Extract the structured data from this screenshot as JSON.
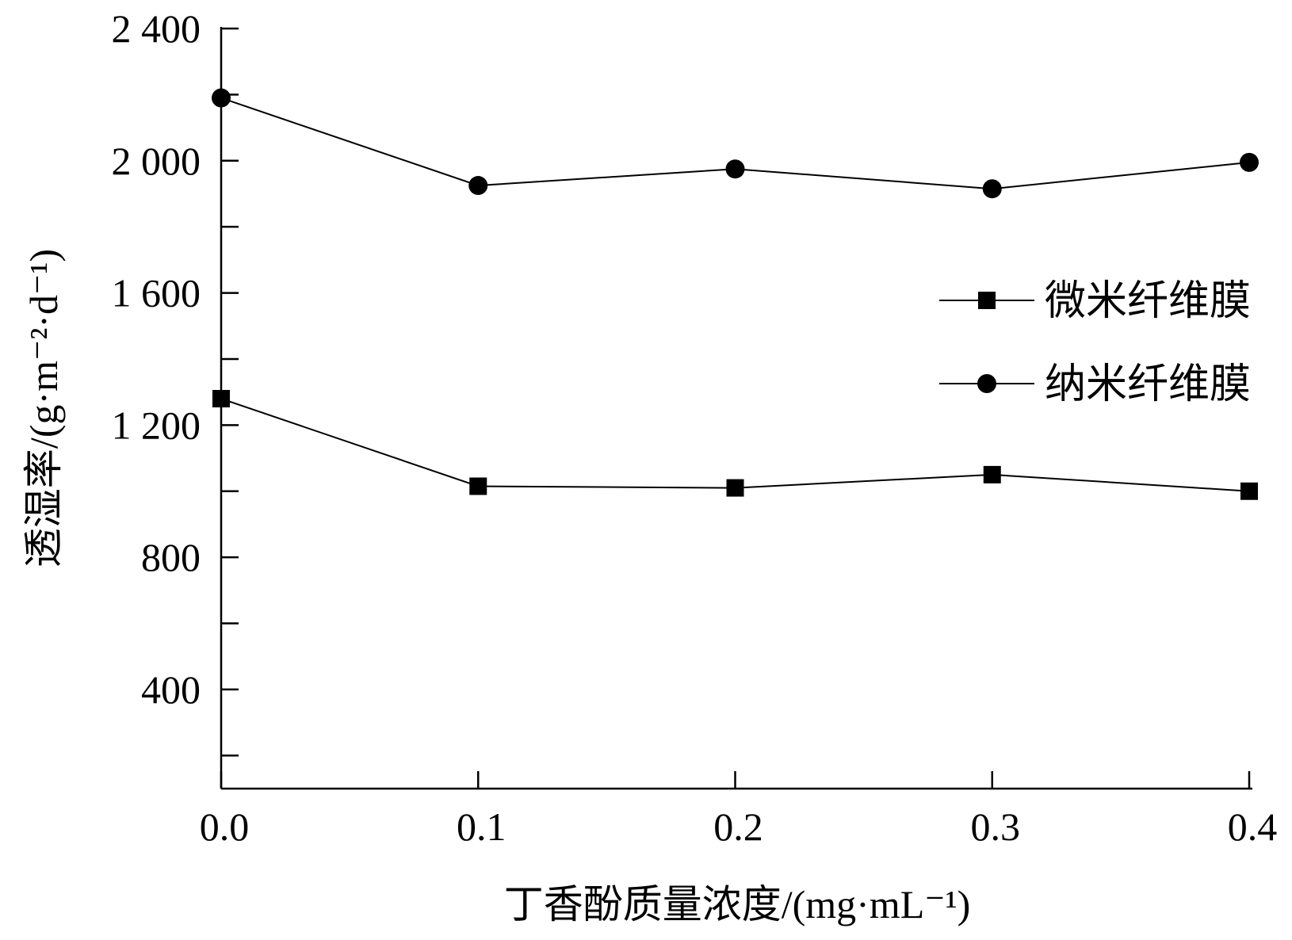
{
  "chart_data": {
    "type": "line",
    "title": "",
    "xlabel": "丁香酚质量浓度/(mg·mL⁻¹)",
    "ylabel": "透湿率/(g·m⁻²·d⁻¹)",
    "x": [
      0.0,
      0.1,
      0.2,
      0.3,
      0.4
    ],
    "x_tick_labels": [
      "0.0",
      "0.1",
      "0.2",
      "0.3",
      "0.4"
    ],
    "y_tick_values": [
      400,
      800,
      1200,
      1600,
      2000,
      2400
    ],
    "y_tick_labels": [
      "400",
      "800",
      "1 200",
      "1 600",
      "2 000",
      "2 400"
    ],
    "y_minor_tick_values": [
      200,
      600,
      1000,
      1400,
      1800,
      2200
    ],
    "xlim": [
      0.0,
      0.4
    ],
    "ylim": [
      100,
      2400
    ],
    "grid": false,
    "legend_position": "center-right",
    "series": [
      {
        "name": "微米纤维膜",
        "marker": "square",
        "color": "#000000",
        "values": [
          1280,
          1015,
          1010,
          1050,
          1000
        ]
      },
      {
        "name": "纳米纤维膜",
        "marker": "circle",
        "color": "#000000",
        "values": [
          2190,
          1925,
          1975,
          1915,
          1995
        ]
      }
    ]
  }
}
